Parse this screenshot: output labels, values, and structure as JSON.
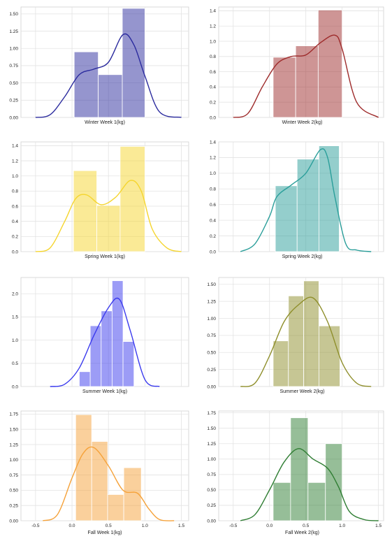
{
  "chart_data": [
    {
      "type": "histogram-kde",
      "xlabel": "Winter Week 1(kg)",
      "color": "#2b2b9e",
      "bins": [
        0.03,
        0.36,
        0.69,
        1.0
      ],
      "heights": [
        0.95,
        0.62,
        1.58
      ],
      "kde": {
        "x": [
          -0.5,
          -0.3,
          -0.1,
          0.1,
          0.3,
          0.5,
          0.7,
          0.85,
          1.0,
          1.2,
          1.5
        ],
        "y": [
          0.0,
          0.04,
          0.3,
          0.62,
          0.7,
          0.8,
          1.2,
          1.05,
          0.6,
          0.08,
          0.0
        ]
      },
      "ylim": [
        0,
        1.6
      ],
      "yticks": [
        "0.00",
        "0.25",
        "0.50",
        "0.75",
        "1.00",
        "1.25",
        "1.50"
      ],
      "yticks_v": [
        0,
        0.25,
        0.5,
        0.75,
        1.0,
        1.25,
        1.5
      ]
    },
    {
      "type": "histogram-kde",
      "xlabel": "Winter Week 2(kg)",
      "color": "#9e2b2b",
      "bins": [
        0.05,
        0.36,
        0.67,
        1.0
      ],
      "heights": [
        0.79,
        0.94,
        1.41
      ],
      "kde": {
        "x": [
          -0.5,
          -0.3,
          -0.1,
          0.1,
          0.3,
          0.5,
          0.7,
          0.9,
          1.0,
          1.2,
          1.5
        ],
        "y": [
          0.0,
          0.05,
          0.4,
          0.7,
          0.8,
          0.82,
          0.98,
          1.08,
          0.9,
          0.2,
          0.0
        ]
      },
      "ylim": [
        0,
        1.45
      ],
      "yticks": [
        "0.0",
        "0.2",
        "0.4",
        "0.6",
        "0.8",
        "1.0",
        "1.2",
        "1.4"
      ],
      "yticks_v": [
        0,
        0.2,
        0.4,
        0.6,
        0.8,
        1.0,
        1.2,
        1.4
      ]
    },
    {
      "type": "histogram-kde",
      "xlabel": "Spring Week 1(kg)",
      "color": "#f5d52e",
      "bins": [
        0.02,
        0.34,
        0.66,
        1.0
      ],
      "heights": [
        1.07,
        0.61,
        1.39
      ],
      "kde": {
        "x": [
          -0.5,
          -0.3,
          -0.1,
          0.05,
          0.2,
          0.4,
          0.6,
          0.8,
          0.95,
          1.1,
          1.3,
          1.5
        ],
        "y": [
          0.0,
          0.05,
          0.4,
          0.7,
          0.75,
          0.62,
          0.72,
          0.94,
          0.8,
          0.3,
          0.05,
          0.0
        ]
      },
      "ylim": [
        0,
        1.45
      ],
      "yticks": [
        "0.0",
        "0.2",
        "0.4",
        "0.6",
        "0.8",
        "1.0",
        "1.2",
        "1.4"
      ],
      "yticks_v": [
        0,
        0.2,
        0.4,
        0.6,
        0.8,
        1.0,
        1.2,
        1.4
      ]
    },
    {
      "type": "histogram-kde",
      "xlabel": "Spring Week 2(kg)",
      "color": "#2a9e9a",
      "bins": [
        0.08,
        0.38,
        0.68,
        0.96
      ],
      "heights": [
        0.84,
        1.18,
        1.35
      ],
      "kde": {
        "x": [
          -0.4,
          -0.2,
          0.0,
          0.1,
          0.3,
          0.5,
          0.7,
          0.8,
          0.9,
          1.05,
          1.2,
          1.4
        ],
        "y": [
          0.0,
          0.1,
          0.45,
          0.7,
          0.85,
          1.0,
          1.3,
          1.2,
          0.7,
          0.1,
          0.02,
          0.0
        ]
      },
      "ylim": [
        0,
        1.4
      ],
      "yticks": [
        "0.0",
        "0.2",
        "0.4",
        "0.6",
        "0.8",
        "1.0",
        "1.2",
        "1.4"
      ],
      "yticks_v": [
        0,
        0.2,
        0.4,
        0.6,
        0.8,
        1.0,
        1.2,
        1.4
      ]
    },
    {
      "type": "histogram-kde",
      "xlabel": "Summer Week 1(kg)",
      "color": "#3a3aee",
      "bins": [
        0.1,
        0.25,
        0.4,
        0.55,
        0.7,
        0.85
      ],
      "heights": [
        0.32,
        1.31,
        1.63,
        2.28,
        0.97
      ],
      "kde": {
        "x": [
          -0.3,
          -0.1,
          0.1,
          0.3,
          0.5,
          0.65,
          0.8,
          1.0,
          1.2
        ],
        "y": [
          0.0,
          0.05,
          0.4,
          1.1,
          1.7,
          1.88,
          1.2,
          0.15,
          0.0
        ]
      },
      "ylim": [
        0,
        2.35
      ],
      "yticks": [
        "0.0",
        "0.5",
        "1.0",
        "1.5",
        "2.0"
      ],
      "yticks_v": [
        0,
        0.5,
        1.0,
        1.5,
        2.0
      ]
    },
    {
      "type": "histogram-kde",
      "xlabel": "Summer Week 2(kg)",
      "color": "#8e8e2a",
      "bins": [
        0.05,
        0.26,
        0.47,
        0.68,
        0.97
      ],
      "heights": [
        0.67,
        1.33,
        1.55,
        0.89
      ],
      "kde": {
        "x": [
          -0.4,
          -0.2,
          0.0,
          0.2,
          0.4,
          0.6,
          0.8,
          1.0,
          1.2,
          1.4
        ],
        "y": [
          0.0,
          0.05,
          0.45,
          0.95,
          1.2,
          1.3,
          0.95,
          0.35,
          0.05,
          0.0
        ]
      },
      "ylim": [
        0,
        1.6
      ],
      "yticks": [
        "0.00",
        "0.25",
        "0.50",
        "0.75",
        "1.00",
        "1.25",
        "1.50"
      ],
      "yticks_v": [
        0,
        0.25,
        0.5,
        0.75,
        1.0,
        1.25,
        1.5
      ]
    },
    {
      "type": "histogram-kde",
      "xlabel": "Fall Week 1(kg)",
      "color": "#f5a23a",
      "bins": [
        0.05,
        0.27,
        0.49,
        0.71,
        0.95
      ],
      "heights": [
        1.74,
        1.3,
        0.43,
        0.87
      ],
      "kde": {
        "x": [
          -0.4,
          -0.2,
          0.0,
          0.15,
          0.3,
          0.5,
          0.7,
          0.9,
          1.05,
          1.2,
          1.4
        ],
        "y": [
          0.0,
          0.1,
          0.7,
          1.1,
          1.2,
          0.9,
          0.5,
          0.45,
          0.2,
          0.02,
          0.0
        ]
      },
      "ylim": [
        0,
        1.8
      ],
      "xlim": [
        -0.7,
        1.6
      ],
      "yticks": [
        "0.00",
        "0.25",
        "0.50",
        "0.75",
        "1.00",
        "1.25",
        "1.50",
        "1.75"
      ],
      "yticks_v": [
        0,
        0.25,
        0.5,
        0.75,
        1.0,
        1.25,
        1.5,
        1.75
      ],
      "xticks": [
        "-0.5",
        "0.0",
        "0.5",
        "1.0",
        "1.5"
      ],
      "xticks_v": [
        -0.5,
        0,
        0.5,
        1.0,
        1.5
      ]
    },
    {
      "type": "histogram-kde",
      "xlabel": "Fall Week 2(kg)",
      "color": "#2e7d32",
      "bins": [
        0.05,
        0.29,
        0.53,
        0.77,
        1.0
      ],
      "heights": [
        0.62,
        1.67,
        0.62,
        1.25
      ],
      "kde": {
        "x": [
          -0.4,
          -0.2,
          0.0,
          0.2,
          0.4,
          0.6,
          0.8,
          0.95,
          1.1,
          1.3,
          1.5
        ],
        "y": [
          0.0,
          0.1,
          0.5,
          0.95,
          1.17,
          1.0,
          0.85,
          0.55,
          0.15,
          0.02,
          0.0
        ]
      },
      "ylim": [
        0,
        1.78
      ],
      "xlim": [
        -0.7,
        1.6
      ],
      "yticks": [
        "0.00",
        "0.25",
        "0.50",
        "0.75",
        "1.00",
        "1.25",
        "1.50",
        "1.75"
      ],
      "yticks_v": [
        0,
        0.25,
        0.5,
        0.75,
        1.0,
        1.25,
        1.5,
        1.75
      ],
      "xticks": [
        "-0.5",
        "0.0",
        "0.5",
        "1.0",
        "1.5"
      ],
      "xticks_v": [
        -0.5,
        0,
        0.5,
        1.0,
        1.5
      ]
    }
  ]
}
